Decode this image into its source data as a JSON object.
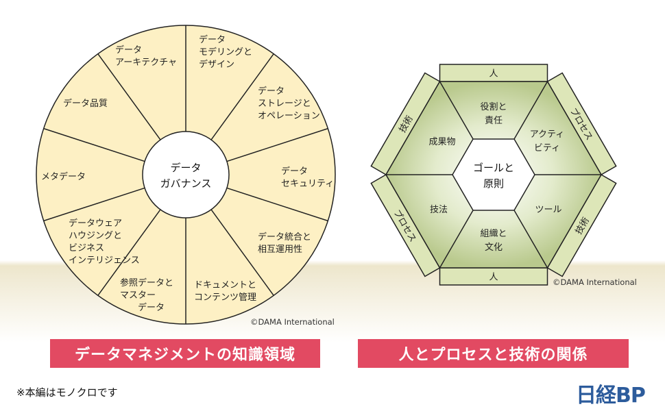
{
  "wheel": {
    "center": [
      "データ",
      "ガバナンス"
    ],
    "sectors": [
      {
        "lines": [
          "データ",
          "モデリングと",
          "デザイン"
        ]
      },
      {
        "lines": [
          "データ",
          "ストレージと",
          "オペレーション"
        ]
      },
      {
        "lines": [
          "データ",
          "セキュリティ"
        ]
      },
      {
        "lines": [
          "データ統合と",
          "相互運用性"
        ]
      },
      {
        "lines": [
          "ドキュメントと",
          "コンテンツ管理"
        ]
      },
      {
        "lines": [
          "参照データと",
          "マスター",
          "　　データ"
        ]
      },
      {
        "lines": [
          "データウェア",
          "ハウジングと",
          "ビジネス",
          "インテリジェンス"
        ]
      },
      {
        "lines": [
          "メタデータ"
        ]
      },
      {
        "lines": [
          "データ品質"
        ]
      },
      {
        "lines": [
          "データ",
          "アーキテクチャ"
        ]
      }
    ],
    "copyright": "©DAMA International",
    "colors": {
      "fill": "#fdf0c4",
      "stroke": "#222222"
    }
  },
  "hexagon": {
    "center": [
      "ゴールと",
      "原則"
    ],
    "sectors": [
      {
        "lines": [
          "役割と",
          "責任"
        ]
      },
      {
        "lines": [
          "アクティ",
          "ビティ"
        ]
      },
      {
        "lines": [
          "ツール"
        ]
      },
      {
        "lines": [
          "組織と",
          "文化"
        ]
      },
      {
        "lines": [
          "技法"
        ]
      },
      {
        "lines": [
          "成果物"
        ]
      }
    ],
    "bands": [
      "人",
      "プロセス",
      "技術",
      "人",
      "プロセス",
      "技術"
    ],
    "copyright": "©DAMA International",
    "colors": {
      "fill": "#c9d6a4",
      "band": "#dde6b8"
    }
  },
  "captions": {
    "left": "データマネジメントの知識領域",
    "right": "人とプロセスと技術の関係",
    "color": "#e24a62"
  },
  "footer": {
    "note": "※本編はモノクロです",
    "logo": "日経BP"
  }
}
